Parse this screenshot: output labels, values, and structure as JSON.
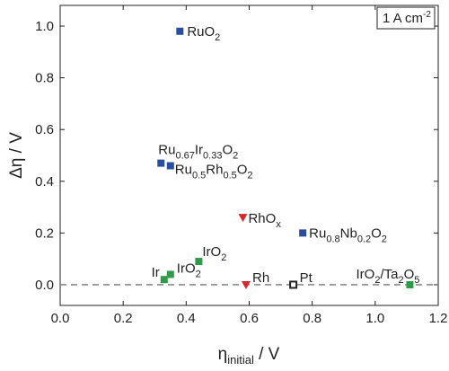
{
  "chart_data": {
    "type": "scatter",
    "xlabel": {
      "main": "η",
      "sub": "initial",
      "unit": " / V"
    },
    "ylabel": "Δη / V",
    "xlim": [
      0.0,
      1.2
    ],
    "ylim": [
      -0.08,
      1.08
    ],
    "xticks": [
      "0.0",
      "0.2",
      "0.4",
      "0.6",
      "0.8",
      "1.0",
      "1.2"
    ],
    "yticks": [
      "0.0",
      "0.2",
      "0.4",
      "0.6",
      "0.8",
      "1.0"
    ],
    "xtick_values": [
      0.0,
      0.2,
      0.4,
      0.6,
      0.8,
      1.0,
      1.2
    ],
    "ytick_values": [
      0.0,
      0.2,
      0.4,
      0.6,
      0.8,
      1.0
    ],
    "annotation_box": {
      "main": "1 A cm",
      "sup": "-2"
    },
    "reference_line": {
      "y": 0.0,
      "style": "dashed",
      "color": "#777777"
    },
    "colors": {
      "blue": "#2a4e9c",
      "red": "#d62a2a",
      "green": "#2f9a47",
      "black": "#222222"
    },
    "points": [
      {
        "x": 0.38,
        "y": 0.98,
        "marker": "square",
        "color": "blue",
        "label": [
          [
            "RuO",
            ""
          ],
          [
            "2",
            "sub"
          ]
        ]
      },
      {
        "x": 0.32,
        "y": 0.47,
        "marker": "square",
        "color": "blue",
        "label": [
          [
            "Ru",
            ""
          ],
          [
            "0.67",
            "sub"
          ],
          [
            "Ir",
            ""
          ],
          [
            "0.33",
            "sub"
          ],
          [
            "O",
            ""
          ],
          [
            "2",
            "sub"
          ]
        ]
      },
      {
        "x": 0.35,
        "y": 0.46,
        "marker": "square",
        "color": "blue",
        "label": [
          [
            "Ru",
            ""
          ],
          [
            "0.5",
            "sub"
          ],
          [
            "Rh",
            ""
          ],
          [
            "0.5",
            "sub"
          ],
          [
            "O",
            ""
          ],
          [
            "2",
            "sub"
          ]
        ]
      },
      {
        "x": 0.58,
        "y": 0.26,
        "marker": "triangle-down",
        "color": "red",
        "label": [
          [
            "RhO",
            ""
          ],
          [
            "x",
            "sub"
          ]
        ]
      },
      {
        "x": 0.77,
        "y": 0.2,
        "marker": "square",
        "color": "blue",
        "label": [
          [
            "Ru",
            ""
          ],
          [
            "0.8",
            "sub"
          ],
          [
            "Nb",
            ""
          ],
          [
            "0.2",
            "sub"
          ],
          [
            "O",
            ""
          ],
          [
            "2",
            "sub"
          ]
        ]
      },
      {
        "x": 0.44,
        "y": 0.09,
        "marker": "square",
        "color": "green",
        "label": [
          [
            "IrO",
            ""
          ],
          [
            "2",
            "sub"
          ]
        ]
      },
      {
        "x": 0.33,
        "y": 0.02,
        "marker": "square",
        "color": "green",
        "label": [
          [
            "Ir",
            ""
          ]
        ]
      },
      {
        "x": 0.35,
        "y": 0.04,
        "marker": "square",
        "color": "green",
        "label": [
          [
            "IrO",
            ""
          ],
          [
            "2",
            "sub"
          ]
        ]
      },
      {
        "x": 0.59,
        "y": 0.0,
        "marker": "triangle-down",
        "color": "red",
        "label": [
          [
            "Rh",
            ""
          ]
        ]
      },
      {
        "x": 0.74,
        "y": 0.0,
        "marker": "square-open",
        "color": "black",
        "label": [
          [
            "Pt",
            ""
          ]
        ]
      },
      {
        "x": 1.11,
        "y": 0.0,
        "marker": "square",
        "color": "green",
        "label": [
          [
            "IrO",
            ""
          ],
          [
            "2",
            "sub"
          ],
          [
            "/Ta",
            ""
          ],
          [
            "2",
            "sub"
          ],
          [
            "O",
            ""
          ],
          [
            "5",
            "sub"
          ]
        ]
      }
    ]
  }
}
